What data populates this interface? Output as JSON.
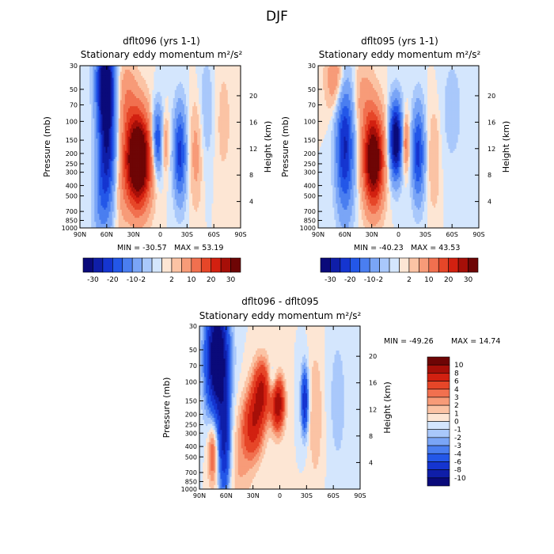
{
  "figure_title": "DJF",
  "chart_data": [
    {
      "type": "heatmap",
      "title": "dflt096 (yrs 1-1)",
      "subtitle": "Stationary eddy momentum",
      "units": "m²/s²",
      "xlabel": "",
      "ylabel": "Pressure (mb)",
      "ylabel_right": "Height (km)",
      "x_ticks": [
        "90N",
        "60N",
        "30N",
        "0",
        "30S",
        "60S",
        "90S"
      ],
      "y_ticks": [
        "30",
        "50",
        "70",
        "100",
        "150",
        "200",
        "250",
        "300",
        "400",
        "500",
        "700",
        "850",
        "1000"
      ],
      "y_ticks_right": [
        "20",
        "16",
        "12",
        "8",
        "4"
      ],
      "min_label": "MIN = -30.57",
      "max_label": "MAX =  53.19",
      "colorbar_orientation": "horizontal",
      "colorbar_labels": [
        "-30",
        "-20",
        "-10",
        "-2",
        "2",
        "10",
        "20",
        "30"
      ],
      "features": [
        {
          "lat": 60,
          "p": 150,
          "value": -30,
          "wlat": 7,
          "hp": 1.1
        },
        {
          "lat": 62,
          "p": 40,
          "value": -28,
          "wlat": 7,
          "hp": 0.6
        },
        {
          "lat": 68,
          "p": 600,
          "value": -6,
          "wlat": 6,
          "hp": 0.6
        },
        {
          "lat": 25,
          "p": 230,
          "value": 48,
          "wlat": 10,
          "hp": 0.7
        },
        {
          "lat": 38,
          "p": 60,
          "value": 8,
          "wlat": 8,
          "hp": 0.6
        },
        {
          "lat": 45,
          "p": 500,
          "value": 4,
          "wlat": 7,
          "hp": 0.7
        },
        {
          "lat": 3,
          "p": 150,
          "value": -22,
          "wlat": 4.5,
          "hp": 0.5
        },
        {
          "lat": -5,
          "p": 160,
          "value": 10,
          "wlat": 3,
          "hp": 0.4
        },
        {
          "lat": -22,
          "p": 200,
          "value": -22,
          "wlat": 5,
          "hp": 0.7
        },
        {
          "lat": -40,
          "p": 200,
          "value": 7,
          "wlat": 5,
          "hp": 0.8
        },
        {
          "lat": -52,
          "p": 80,
          "value": -4,
          "wlat": 7,
          "hp": 0.9
        },
        {
          "lat": -70,
          "p": 100,
          "value": 3,
          "wlat": 8,
          "hp": 1.0
        }
      ]
    },
    {
      "type": "heatmap",
      "title": "dflt095 (yrs 1-1)",
      "subtitle": "Stationary eddy momentum",
      "units": "m²/s²",
      "xlabel": "",
      "ylabel": "Pressure (mb)",
      "ylabel_right": "Height (km)",
      "x_ticks": [
        "90N",
        "60N",
        "30N",
        "0",
        "30S",
        "60S",
        "90S"
      ],
      "y_ticks": [
        "30",
        "50",
        "70",
        "100",
        "150",
        "200",
        "250",
        "300",
        "400",
        "500",
        "700",
        "850",
        "1000"
      ],
      "y_ticks_right": [
        "20",
        "16",
        "12",
        "8",
        "4"
      ],
      "min_label": "MIN = -40.23",
      "max_label": "MAX =  43.53",
      "colorbar_orientation": "horizontal",
      "colorbar_labels": [
        "-30",
        "-20",
        "-10",
        "-2",
        "2",
        "10",
        "20",
        "30"
      ],
      "features": [
        {
          "lat": 60,
          "p": 170,
          "value": -26,
          "wlat": 7,
          "hp": 1.0
        },
        {
          "lat": 70,
          "p": 40,
          "value": 10,
          "wlat": 8,
          "hp": 0.5
        },
        {
          "lat": 28,
          "p": 230,
          "value": 40,
          "wlat": 8,
          "hp": 0.7
        },
        {
          "lat": 40,
          "p": 60,
          "value": 6,
          "wlat": 8,
          "hp": 0.6
        },
        {
          "lat": 3,
          "p": 150,
          "value": -38,
          "wlat": 5,
          "hp": 0.55
        },
        {
          "lat": -8,
          "p": 160,
          "value": 14,
          "wlat": 3,
          "hp": 0.4
        },
        {
          "lat": -22,
          "p": 200,
          "value": -22,
          "wlat": 5,
          "hp": 0.7
        },
        {
          "lat": -40,
          "p": 220,
          "value": 5,
          "wlat": 5,
          "hp": 0.8
        },
        {
          "lat": -60,
          "p": 80,
          "value": -3,
          "wlat": 10,
          "hp": 1.0
        }
      ]
    },
    {
      "type": "heatmap",
      "title": "dflt096 - dflt095",
      "subtitle": "Stationary eddy momentum",
      "units": "m²/s²",
      "xlabel": "",
      "ylabel": "Pressure (mb)",
      "ylabel_right": "Height (km)",
      "x_ticks": [
        "90N",
        "60N",
        "30N",
        "0",
        "30S",
        "60S",
        "90S"
      ],
      "y_ticks": [
        "30",
        "50",
        "70",
        "100",
        "150",
        "200",
        "250",
        "300",
        "400",
        "500",
        "700",
        "850",
        "1000"
      ],
      "y_ticks_right": [
        "20",
        "16",
        "12",
        "8",
        "4"
      ],
      "min_label": "MIN = -49.26",
      "max_label": "MAX =  14.74",
      "colorbar_orientation": "vertical",
      "colorbar_labels": [
        "10",
        "8",
        "6",
        "4",
        "3",
        "2",
        "1",
        "0",
        "-1",
        "-2",
        "-3",
        "-4",
        "-6",
        "-8",
        "-10"
      ],
      "features": [
        {
          "lat": 70,
          "p": 60,
          "value": -14,
          "wlat": 9,
          "hp": 0.9
        },
        {
          "lat": 62,
          "p": 400,
          "value": -8,
          "wlat": 5,
          "hp": 0.8
        },
        {
          "lat": 75,
          "p": 450,
          "value": 5,
          "wlat": 4,
          "hp": 0.5
        },
        {
          "lat": 30,
          "p": 250,
          "value": 7,
          "wlat": 8,
          "hp": 0.5
        },
        {
          "lat": 20,
          "p": 120,
          "value": 8,
          "wlat": 7,
          "hp": 0.45
        },
        {
          "lat": 2,
          "p": 160,
          "value": 10,
          "wlat": 5,
          "hp": 0.4
        },
        {
          "lat": 8,
          "p": 100,
          "value": -3,
          "wlat": 4,
          "hp": 0.3
        },
        {
          "lat": -28,
          "p": 150,
          "value": -8,
          "wlat": 3,
          "hp": 0.5
        },
        {
          "lat": -40,
          "p": 200,
          "value": 2,
          "wlat": 6,
          "hp": 1.0
        },
        {
          "lat": -65,
          "p": 150,
          "value": -1.5,
          "wlat": 8,
          "hp": 1.2
        },
        {
          "lat": 45,
          "p": 600,
          "value": 2,
          "wlat": 10,
          "hp": 0.8
        }
      ]
    }
  ]
}
